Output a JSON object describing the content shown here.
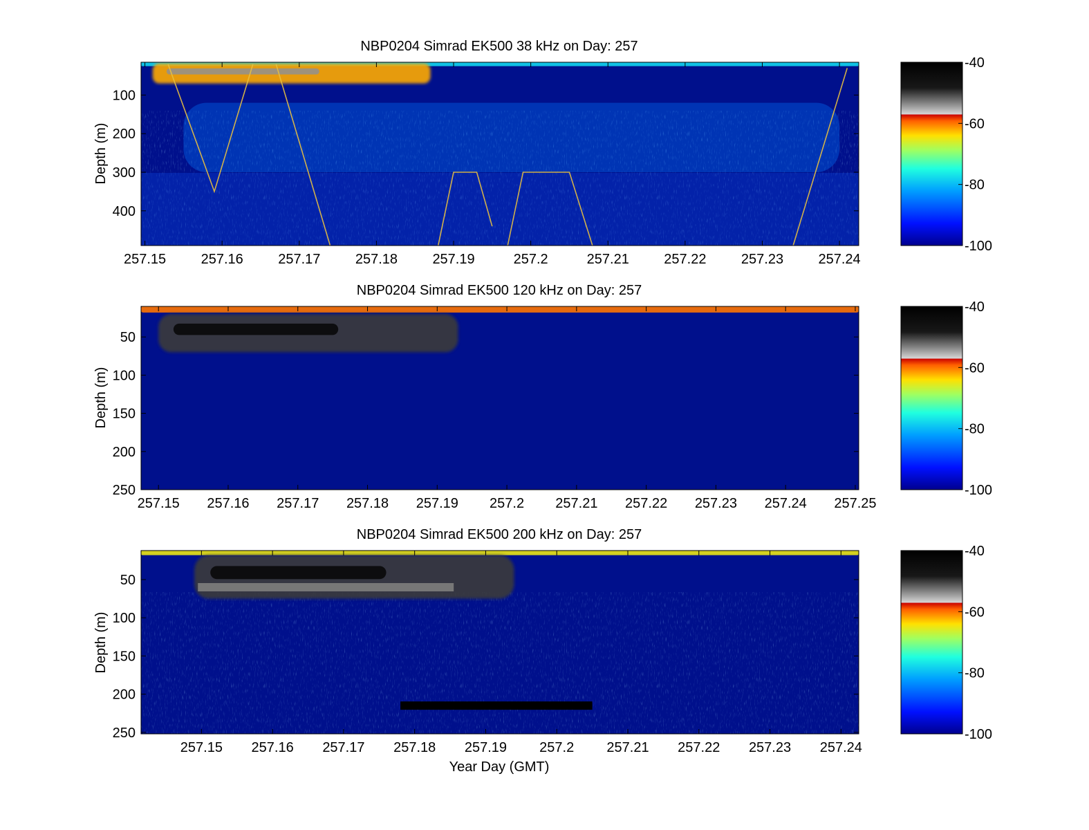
{
  "chart_data": [
    {
      "type": "heatmap",
      "title": "NBP0204 Simrad EK500 38 kHz on Day:  257",
      "xlabel": "",
      "ylabel": "Depth (m)",
      "xlim": [
        257.1495,
        257.2425
      ],
      "ylim": [
        15,
        490
      ],
      "y_reversed": true,
      "x_ticks": [
        "257.15",
        "257.16",
        "257.17",
        "257.18",
        "257.19",
        "257.2",
        "257.21",
        "257.22",
        "257.23",
        "257.24"
      ],
      "y_ticks": [
        "100",
        "200",
        "300",
        "400"
      ],
      "y_tick_values": [
        100,
        200,
        300,
        400
      ],
      "colorbar": {
        "min": -100,
        "max": -40,
        "ticks": [
          "-40",
          "-60",
          "-80",
          "-100"
        ]
      },
      "scatter_layers": [
        {
          "name": "surface scattering layer",
          "x_start": 257.1495,
          "x_end": 257.2425,
          "depth_top": 15,
          "depth_bottom": 25,
          "sv_db": -78
        },
        {
          "name": "krill swarm",
          "x_start": 257.151,
          "x_end": 257.187,
          "depth_top": 18,
          "depth_bottom": 70,
          "sv_db": -62
        },
        {
          "name": "fish traces",
          "x_start": 257.155,
          "x_end": 257.24,
          "depth_top": 120,
          "depth_bottom": 300,
          "sv_db": -85
        }
      ],
      "net_tows": [
        {
          "points": [
            [
              257.153,
              20
            ],
            [
              257.159,
              350
            ],
            [
              257.164,
              20
            ]
          ]
        },
        {
          "points": [
            [
              257.167,
              20
            ],
            [
              257.174,
              490
            ]
          ]
        },
        {
          "points": [
            [
              257.188,
              490
            ],
            [
              257.19,
              300
            ],
            [
              257.193,
              300
            ],
            [
              257.195,
              440
            ]
          ]
        },
        {
          "points": [
            [
              257.197,
              490
            ],
            [
              257.199,
              300
            ],
            [
              257.205,
              300
            ],
            [
              257.208,
              490
            ]
          ]
        },
        {
          "points": [
            [
              257.234,
              490
            ],
            [
              257.241,
              30
            ]
          ]
        }
      ]
    },
    {
      "type": "heatmap",
      "title": "NBP0204 Simrad EK500 120 kHz on Day:  257",
      "xlabel": "",
      "ylabel": "Depth (m)",
      "xlim": [
        257.1475,
        257.2505
      ],
      "ylim": [
        10,
        250
      ],
      "y_reversed": true,
      "x_ticks": [
        "257.15",
        "257.16",
        "257.17",
        "257.18",
        "257.19",
        "257.2",
        "257.21",
        "257.22",
        "257.23",
        "257.24",
        "257.25"
      ],
      "y_ticks": [
        "50",
        "100",
        "150",
        "200",
        "250"
      ],
      "y_tick_values": [
        50,
        100,
        150,
        200,
        250
      ],
      "colorbar": {
        "min": -100,
        "max": -40,
        "ticks": [
          "-40",
          "-60",
          "-80",
          "-100"
        ]
      },
      "scatter_layers": [
        {
          "name": "surface scattering layer",
          "x_start": 257.1475,
          "x_end": 257.2505,
          "depth_top": 10,
          "depth_bottom": 18,
          "sv_db": -60
        },
        {
          "name": "krill swarm",
          "x_start": 257.15,
          "x_end": 257.193,
          "depth_top": 20,
          "depth_bottom": 70,
          "sv_db": -50
        }
      ]
    },
    {
      "type": "heatmap",
      "title": "NBP0204 Simrad EK500 200 kHz on Day:  257",
      "xlabel": "Year Day (GMT)",
      "ylabel": "Depth (m)",
      "xlim": [
        257.1415,
        257.2425
      ],
      "ylim": [
        12,
        252
      ],
      "y_reversed": true,
      "x_ticks": [
        "257.15",
        "257.16",
        "257.17",
        "257.18",
        "257.19",
        "257.2",
        "257.21",
        "257.22",
        "257.23",
        "257.24"
      ],
      "y_ticks": [
        "50",
        "100",
        "150",
        "200",
        "250"
      ],
      "y_tick_values": [
        50,
        100,
        150,
        200,
        250
      ],
      "colorbar": {
        "min": -100,
        "max": -40,
        "ticks": [
          "-40",
          "-60",
          "-80",
          "-100"
        ]
      },
      "scatter_layers": [
        {
          "name": "surface scattering layer",
          "x_start": 257.1415,
          "x_end": 257.2425,
          "depth_top": 12,
          "depth_bottom": 18,
          "sv_db": -65
        },
        {
          "name": "krill swarm",
          "x_start": 257.149,
          "x_end": 257.194,
          "depth_top": 18,
          "depth_bottom": 75,
          "sv_db": -50
        }
      ],
      "bars": [
        {
          "x_start": 257.1495,
          "x_end": 257.1855,
          "depth": 60,
          "color": "#777777"
        },
        {
          "x_start": 257.178,
          "x_end": 257.205,
          "depth": 215,
          "color": "#000000"
        }
      ]
    }
  ]
}
